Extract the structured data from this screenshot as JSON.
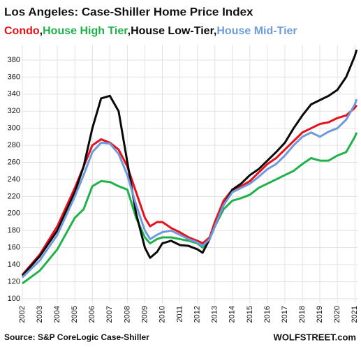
{
  "chart_data": {
    "type": "line",
    "title": "Los Angeles: Case-Shiller Home Price Index",
    "legend_separator": ",",
    "source": "Source: S&P CoreLogic Case-Shiller",
    "credit": "WOLFSTREET.com",
    "x": [
      2002,
      2003,
      2004,
      2005,
      2005.5,
      2006,
      2006.5,
      2007,
      2007.5,
      2008,
      2008.5,
      2009,
      2009.3,
      2009.7,
      2010,
      2010.5,
      2011,
      2011.5,
      2012,
      2012.3,
      2012.7,
      2013,
      2013.5,
      2014,
      2014.5,
      2015,
      2015.5,
      2016,
      2016.5,
      2017,
      2017.5,
      2018,
      2018.5,
      2019,
      2019.5,
      2020,
      2020.5,
      2021,
      2021.1
    ],
    "series": [
      {
        "name": "Condo",
        "color": "#e8101a",
        "values": [
          128,
          152,
          185,
          230,
          255,
          280,
          287,
          283,
          275,
          255,
          225,
          195,
          185,
          190,
          190,
          183,
          178,
          172,
          168,
          165,
          172,
          190,
          215,
          228,
          232,
          238,
          248,
          258,
          265,
          275,
          285,
          295,
          300,
          305,
          307,
          312,
          315,
          324,
          327
        ]
      },
      {
        "name": "House High Tier",
        "color": "#1fb24a",
        "values": [
          118,
          133,
          158,
          195,
          205,
          232,
          238,
          237,
          232,
          228,
          195,
          172,
          165,
          170,
          172,
          172,
          170,
          168,
          165,
          160,
          170,
          185,
          205,
          215,
          218,
          222,
          230,
          235,
          240,
          245,
          250,
          258,
          265,
          262,
          262,
          268,
          272,
          290,
          295
        ]
      },
      {
        "name": "House Low-Tier",
        "color": "#0a0a0a",
        "values": [
          127,
          150,
          180,
          225,
          255,
          300,
          335,
          338,
          320,
          260,
          200,
          160,
          148,
          155,
          165,
          168,
          163,
          162,
          158,
          154,
          170,
          185,
          210,
          228,
          235,
          245,
          252,
          262,
          272,
          283,
          300,
          315,
          328,
          333,
          338,
          345,
          360,
          385,
          392
        ]
      },
      {
        "name": "House Mid-Tier",
        "color": "#6f9bdc",
        "values": [
          125,
          145,
          175,
          220,
          245,
          272,
          283,
          282,
          270,
          245,
          210,
          180,
          170,
          175,
          178,
          180,
          175,
          170,
          166,
          162,
          170,
          185,
          210,
          225,
          230,
          235,
          243,
          252,
          258,
          268,
          280,
          290,
          295,
          290,
          296,
          300,
          310,
          328,
          334
        ]
      }
    ],
    "xlim": [
      2002,
      2021.15
    ],
    "xticks": [
      2002,
      2003,
      2004,
      2005,
      2006,
      2007,
      2008,
      2009,
      2010,
      2011,
      2012,
      2013,
      2014,
      2015,
      2016,
      2017,
      2018,
      2019,
      2020,
      2021
    ],
    "ylim": [
      95,
      398
    ],
    "yticks": [
      100,
      120,
      140,
      160,
      180,
      200,
      220,
      240,
      260,
      280,
      300,
      320,
      340,
      360,
      380
    ],
    "grid": true
  }
}
